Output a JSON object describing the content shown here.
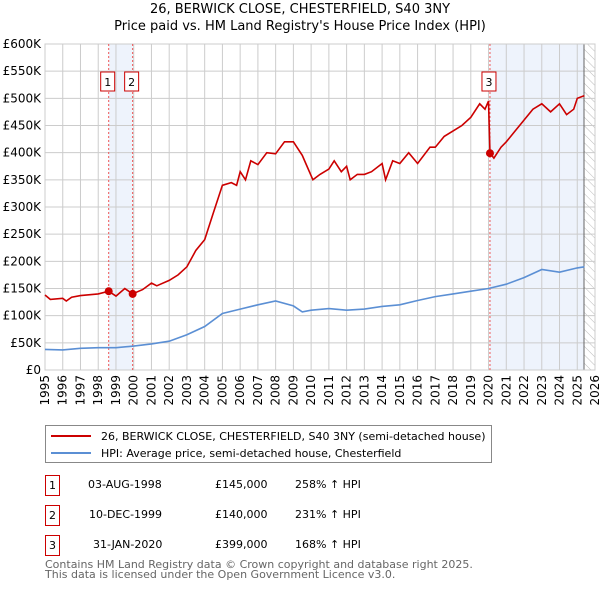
{
  "title": "26, BERWICK CLOSE, CHESTERFIELD, S40 3NY",
  "subtitle": "Price paid vs. HM Land Registry's House Price Index (HPI)",
  "colors": {
    "property": "#cc0000",
    "hpi": "#5b8fd4",
    "shade": "#eef3fc",
    "grid": "#cccccc"
  },
  "chart_data": {
    "type": "line",
    "ylim": [
      0,
      600000
    ],
    "xlim": [
      1995,
      2026
    ],
    "yticks": [
      {
        "v": 0,
        "label": "£0"
      },
      {
        "v": 50000,
        "label": "£50K"
      },
      {
        "v": 100000,
        "label": "£100K"
      },
      {
        "v": 150000,
        "label": "£150K"
      },
      {
        "v": 200000,
        "label": "£200K"
      },
      {
        "v": 250000,
        "label": "£250K"
      },
      {
        "v": 300000,
        "label": "£300K"
      },
      {
        "v": 350000,
        "label": "£350K"
      },
      {
        "v": 400000,
        "label": "£400K"
      },
      {
        "v": 450000,
        "label": "£450K"
      },
      {
        "v": 500000,
        "label": "£500K"
      },
      {
        "v": 550000,
        "label": "£550K"
      },
      {
        "v": 600000,
        "label": "£600K"
      }
    ],
    "xticks": [
      "1995",
      "1996",
      "1997",
      "1998",
      "1999",
      "2000",
      "2001",
      "2002",
      "2003",
      "2004",
      "2005",
      "2006",
      "2007",
      "2008",
      "2009",
      "2010",
      "2011",
      "2012",
      "2013",
      "2014",
      "2015",
      "2016",
      "2017",
      "2018",
      "2019",
      "2020",
      "2021",
      "2022",
      "2023",
      "2024",
      "2025",
      "2026"
    ],
    "series": [
      {
        "name": "26, BERWICK CLOSE, CHESTERFIELD, S40 3NY (semi-detached house)",
        "color": "#cc0000",
        "x": [
          1995,
          1995.3,
          1996,
          1996.2,
          1996.5,
          1997,
          1998,
          1998.59,
          1999,
          1999.5,
          1999.94,
          2000.5,
          2001,
          2001.3,
          2002,
          2002.5,
          2003,
          2003.5,
          2004,
          2004.5,
          2005,
          2005.5,
          2005.8,
          2006,
          2006.3,
          2006.6,
          2007,
          2007.5,
          2008,
          2008.5,
          2009,
          2009.5,
          2009.7,
          2010.1,
          2010.5,
          2011,
          2011.3,
          2011.7,
          2012,
          2012.2,
          2012.6,
          2013,
          2013.4,
          2014,
          2014.2,
          2014.6,
          2015,
          2015.5,
          2016,
          2016.7,
          2017,
          2017.5,
          2018,
          2018.5,
          2019,
          2019.5,
          2019.8,
          2020.0,
          2020.08,
          2020.3,
          2020.7,
          2021,
          2021.5,
          2022,
          2022.5,
          2023,
          2023.5,
          2024,
          2024.4,
          2024.8,
          2025,
          2025.4
        ],
        "y": [
          138000,
          130000,
          132000,
          127000,
          134000,
          137000,
          140000,
          145000,
          136000,
          150000,
          140000,
          148000,
          160000,
          155000,
          165000,
          175000,
          190000,
          220000,
          240000,
          290000,
          340000,
          345000,
          340000,
          365000,
          350000,
          385000,
          378000,
          400000,
          398000,
          420000,
          420000,
          395000,
          380000,
          350000,
          360000,
          370000,
          385000,
          365000,
          375000,
          350000,
          360000,
          360000,
          365000,
          380000,
          350000,
          385000,
          380000,
          400000,
          380000,
          410000,
          410000,
          430000,
          440000,
          450000,
          465000,
          490000,
          480000,
          495000,
          399000,
          390000,
          410000,
          420000,
          440000,
          460000,
          480000,
          490000,
          475000,
          490000,
          470000,
          480000,
          500000,
          505000
        ]
      },
      {
        "name": "HPI: Average price, semi-detached house, Chesterfield",
        "color": "#5b8fd4",
        "x": [
          1995,
          1996,
          1997,
          1998,
          1999,
          2000,
          2001,
          2002,
          2003,
          2004,
          2005,
          2006,
          2007,
          2008,
          2009,
          2009.5,
          2010,
          2011,
          2012,
          2013,
          2014,
          2015,
          2016,
          2017,
          2018,
          2019,
          2020,
          2021,
          2022,
          2023,
          2024,
          2025,
          2025.4
        ],
        "y": [
          38000,
          37000,
          40000,
          41000,
          41000,
          44000,
          48000,
          53000,
          65000,
          80000,
          104000,
          112000,
          120000,
          127000,
          118000,
          107000,
          110000,
          113000,
          110000,
          112000,
          117000,
          120000,
          128000,
          135000,
          140000,
          145000,
          150000,
          158000,
          170000,
          185000,
          180000,
          188000,
          190000
        ]
      }
    ],
    "sales": [
      {
        "id": "1",
        "x": 1998.59,
        "y": 145000
      },
      {
        "id": "2",
        "x": 1999.94,
        "y": 140000
      },
      {
        "id": "3",
        "x": 2020.08,
        "y": 399000
      }
    ],
    "shaded_ranges": [
      [
        1998.59,
        1999.94
      ],
      [
        2020.08,
        2025.38
      ]
    ],
    "hatch_from": 2025.38
  },
  "legend": {
    "property": "26, BERWICK CLOSE, CHESTERFIELD, S40 3NY (semi-detached house)",
    "hpi": "HPI: Average price, semi-detached house, Chesterfield"
  },
  "transactions": [
    {
      "id": "1",
      "date": "03-AUG-1998",
      "price": "£145,000",
      "hpi": "258% ↑ HPI"
    },
    {
      "id": "2",
      "date": "10-DEC-1999",
      "price": "£140,000",
      "hpi": "231% ↑ HPI"
    },
    {
      "id": "3",
      "date": "31-JAN-2020",
      "price": "£399,000",
      "hpi": "168% ↑ HPI"
    }
  ],
  "footer": {
    "line1": "Contains HM Land Registry data © Crown copyright and database right 2025.",
    "line2": "This data is licensed under the Open Government Licence v3.0."
  }
}
